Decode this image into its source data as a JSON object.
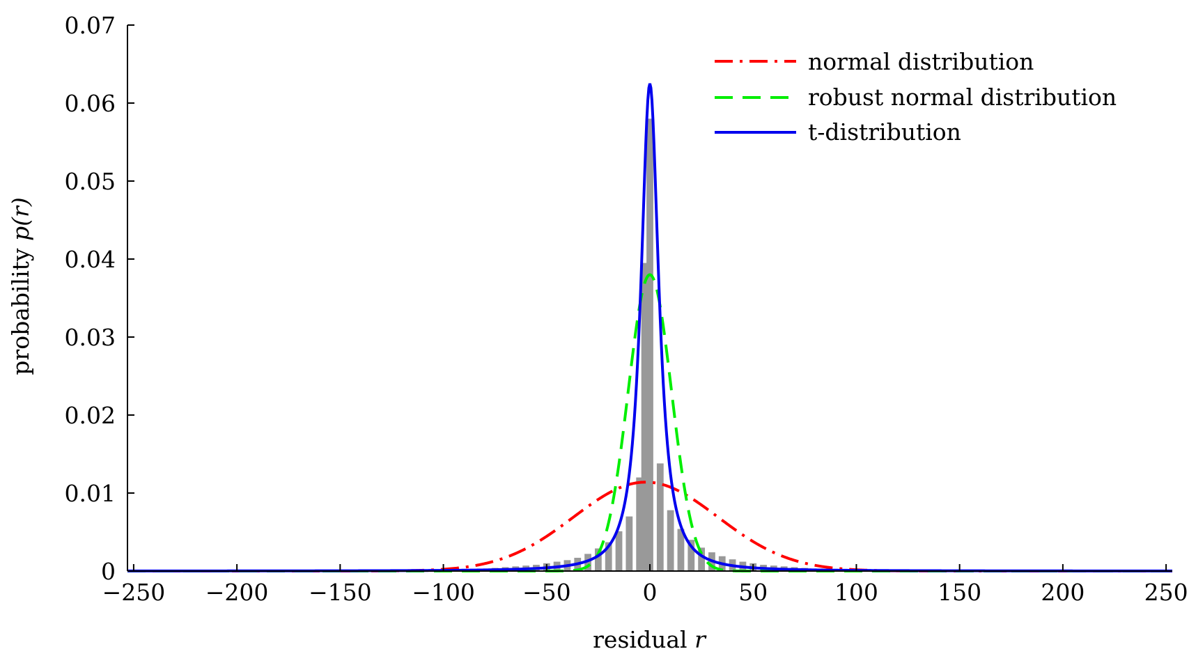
{
  "chart_data": {
    "type": "line",
    "title": "",
    "xlabel": "residual",
    "xlabel_var": "r",
    "ylabel": "probability",
    "ylabel_var": "p(r)",
    "xlim": [
      -253,
      253
    ],
    "ylim": [
      0,
      0.07
    ],
    "x_ticks": [
      -250,
      -200,
      -150,
      -100,
      -50,
      0,
      50,
      100,
      150,
      200,
      250
    ],
    "x_tick_labels": [
      "−250",
      "−200",
      "−150",
      "−100",
      "−50",
      "0",
      "50",
      "100",
      "150",
      "200",
      "250"
    ],
    "y_ticks": [
      0,
      0.01,
      0.02,
      0.03,
      0.04,
      0.05,
      0.06,
      0.07
    ],
    "y_tick_labels": [
      "0",
      "0.01",
      "0.02",
      "0.03",
      "0.04",
      "0.05",
      "0.06",
      "0.07"
    ],
    "grid": false,
    "legend_position": "top-right",
    "histogram": {
      "color": "#999999",
      "bin_width": 5,
      "bar_width": 3.3,
      "bins": [
        {
          "x": -85,
          "y": 0.0002
        },
        {
          "x": -80,
          "y": 0.0003
        },
        {
          "x": -75,
          "y": 0.0004
        },
        {
          "x": -70,
          "y": 0.0005
        },
        {
          "x": -65,
          "y": 0.0006
        },
        {
          "x": -60,
          "y": 0.0007
        },
        {
          "x": -55,
          "y": 0.0008
        },
        {
          "x": -50,
          "y": 0.001
        },
        {
          "x": -45,
          "y": 0.0012
        },
        {
          "x": -40,
          "y": 0.0014
        },
        {
          "x": -35,
          "y": 0.0017
        },
        {
          "x": -30,
          "y": 0.0022
        },
        {
          "x": -25,
          "y": 0.0029
        },
        {
          "x": -20,
          "y": 0.0037
        },
        {
          "x": -15,
          "y": 0.0051
        },
        {
          "x": -10,
          "y": 0.007
        },
        {
          "x": -5,
          "y": 0.012
        },
        {
          "x": -2.5,
          "y": 0.0395
        },
        {
          "x": 0,
          "y": 0.058
        },
        {
          "x": 5,
          "y": 0.0138
        },
        {
          "x": 10,
          "y": 0.0078
        },
        {
          "x": 15,
          "y": 0.0054
        },
        {
          "x": 20,
          "y": 0.004
        },
        {
          "x": 25,
          "y": 0.003
        },
        {
          "x": 30,
          "y": 0.0024
        },
        {
          "x": 35,
          "y": 0.0019
        },
        {
          "x": 40,
          "y": 0.0015
        },
        {
          "x": 45,
          "y": 0.0012
        },
        {
          "x": 50,
          "y": 0.001
        },
        {
          "x": 55,
          "y": 0.0008
        },
        {
          "x": 60,
          "y": 0.0007
        },
        {
          "x": 65,
          "y": 0.0006
        },
        {
          "x": 70,
          "y": 0.0005
        },
        {
          "x": 75,
          "y": 0.0004
        },
        {
          "x": 80,
          "y": 0.0003
        },
        {
          "x": 85,
          "y": 0.0002
        }
      ]
    },
    "series": [
      {
        "name": "normal distribution",
        "color": "#ff0000",
        "style": "dashdot",
        "distribution": "normal",
        "mu": -2,
        "sigma": 35,
        "x": [
          -253,
          -200,
          -150,
          -120,
          -100,
          -80,
          -60,
          -40,
          -20,
          -2,
          20,
          40,
          60,
          80,
          100,
          120,
          150,
          200,
          253
        ],
        "y": [
          0,
          0,
          0,
          0.0,
          0.0002,
          0.0008,
          0.0023,
          0.0056,
          0.0095,
          0.0114,
          0.0093,
          0.0054,
          0.0022,
          0.0007,
          0.0002,
          0.0,
          0,
          0,
          0
        ]
      },
      {
        "name": "robust normal distribution",
        "color": "#00ee00",
        "style": "dashed",
        "distribution": "normal",
        "mu": 0,
        "sigma": 10.5,
        "x": [
          -253,
          -60,
          -40,
          -30,
          -20,
          -15,
          -10,
          -5,
          0,
          5,
          10,
          15,
          20,
          30,
          40,
          60,
          253
        ],
        "y": [
          0,
          0.0,
          0.0,
          0.0007,
          0.0061,
          0.0137,
          0.0241,
          0.0338,
          0.038,
          0.0338,
          0.0241,
          0.0137,
          0.0061,
          0.0007,
          0.0,
          0.0,
          0
        ]
      },
      {
        "name": "t-distribution",
        "color": "#0000ee",
        "style": "solid",
        "distribution": "student-t",
        "mu": 0,
        "scale": 5,
        "df": 1.3,
        "x": [
          -253,
          -150,
          -100,
          -60,
          -40,
          -20,
          -10,
          -5,
          0,
          5,
          10,
          20,
          40,
          60,
          100,
          150,
          253
        ],
        "y": [
          0.0001,
          0.0002,
          0.0004,
          0.0009,
          0.0016,
          0.0043,
          0.013,
          0.034,
          0.0625,
          0.034,
          0.013,
          0.0043,
          0.0016,
          0.0009,
          0.0004,
          0.0002,
          0.0001
        ]
      }
    ]
  }
}
